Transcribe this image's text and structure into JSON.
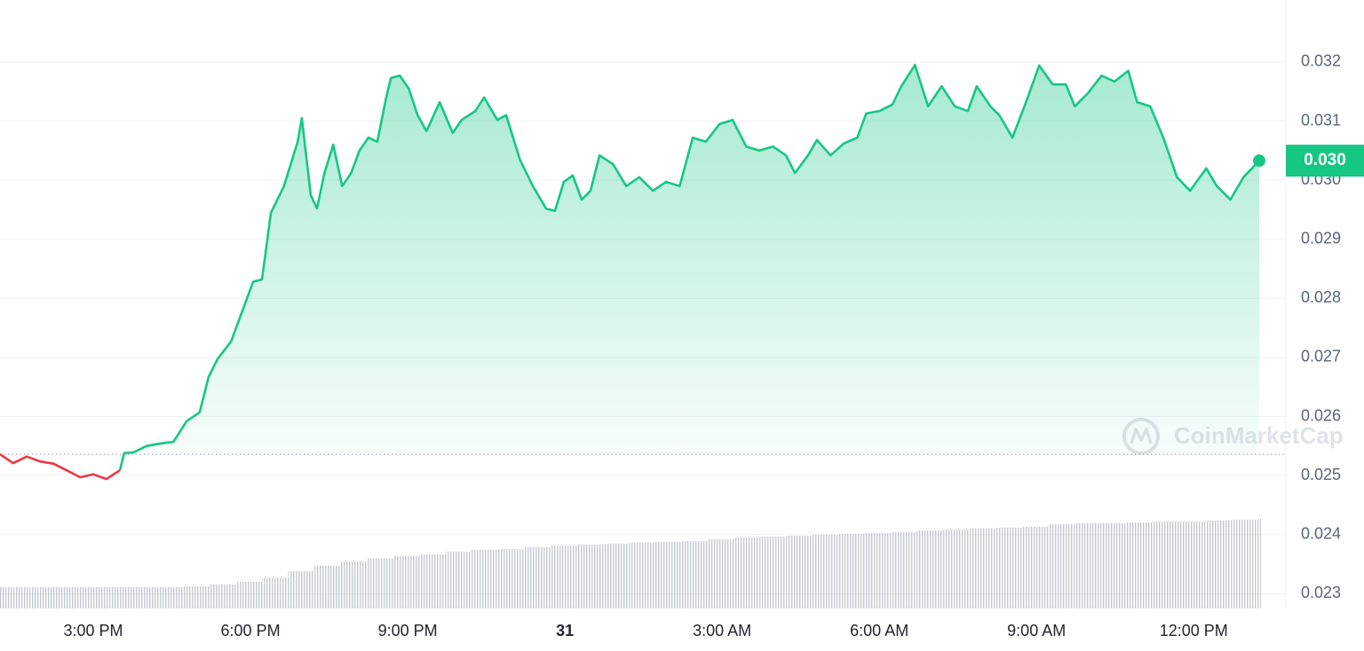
{
  "chart_data": {
    "type": "line",
    "x": [
      13.22,
      13.47,
      13.73,
      13.98,
      14.24,
      14.49,
      14.75,
      15.0,
      15.25,
      15.51,
      15.59,
      15.76,
      16.02,
      16.27,
      16.53,
      16.78,
      17.03,
      17.2,
      17.37,
      17.63,
      17.88,
      18.05,
      18.22,
      18.39,
      18.64,
      18.9,
      18.98,
      19.15,
      19.27,
      19.41,
      19.58,
      19.75,
      19.92,
      20.08,
      20.25,
      20.42,
      20.59,
      20.68,
      20.85,
      21.02,
      21.19,
      21.36,
      21.61,
      21.86,
      22.03,
      22.29,
      22.46,
      22.71,
      22.88,
      23.14,
      23.39,
      23.64,
      23.81,
      23.98,
      24.15,
      24.32,
      24.49,
      24.66,
      24.92,
      25.17,
      25.42,
      25.68,
      25.93,
      26.19,
      26.44,
      26.69,
      26.95,
      27.2,
      27.46,
      27.71,
      27.97,
      28.22,
      28.39,
      28.64,
      28.81,
      29.07,
      29.32,
      29.58,
      29.75,
      30.0,
      30.25,
      30.42,
      30.68,
      30.93,
      31.19,
      31.44,
      31.69,
      31.86,
      32.12,
      32.29,
      32.54,
      32.8,
      33.05,
      33.31,
      33.56,
      33.73,
      33.98,
      34.24,
      34.49,
      34.75,
      34.92,
      35.17,
      35.42,
      35.68,
      35.93,
      36.24,
      36.44,
      36.7,
      36.95,
      37.25
    ],
    "series": [
      {
        "up_color": "#16c784",
        "down_color": "#ea3943",
        "values": [
          0.02536,
          0.02521,
          0.02532,
          0.02524,
          0.0252,
          0.02509,
          0.02497,
          0.02502,
          0.02494,
          0.02509,
          0.02538,
          0.02539,
          0.0255,
          0.02554,
          0.02557,
          0.02592,
          0.02607,
          0.02667,
          0.02697,
          0.02727,
          0.02787,
          0.02828,
          0.02832,
          0.02945,
          0.0299,
          0.03065,
          0.03105,
          0.02975,
          0.02952,
          0.03012,
          0.0306,
          0.0299,
          0.03012,
          0.0305,
          0.03072,
          0.03065,
          0.0314,
          0.03173,
          0.03177,
          0.03155,
          0.0311,
          0.03083,
          0.03132,
          0.0308,
          0.03102,
          0.03117,
          0.0314,
          0.03102,
          0.0311,
          0.03035,
          0.0299,
          0.02952,
          0.02948,
          0.02997,
          0.03008,
          0.02967,
          0.02982,
          0.03042,
          0.03027,
          0.0299,
          0.03005,
          0.02982,
          0.02997,
          0.0299,
          0.03072,
          0.03065,
          0.03095,
          0.03102,
          0.03057,
          0.0305,
          0.03057,
          0.03042,
          0.03012,
          0.03042,
          0.03068,
          0.03042,
          0.03062,
          0.03072,
          0.03113,
          0.03117,
          0.03128,
          0.03159,
          0.03195,
          0.03125,
          0.03159,
          0.03125,
          0.03117,
          0.03159,
          0.03125,
          0.0311,
          0.03072,
          0.03132,
          0.03194,
          0.03162,
          0.03162,
          0.03125,
          0.03147,
          0.03177,
          0.03167,
          0.03185,
          0.03132,
          0.03125,
          0.03072,
          0.03005,
          0.02982,
          0.0302,
          0.0299,
          0.02967,
          0.03005,
          0.03033
        ]
      }
    ],
    "baseline": 0.02536,
    "last_price": {
      "value": 0.03033,
      "label": "0.030"
    },
    "volume": {
      "color": "#c3c9d3",
      "x": [
        13.22,
        13.72,
        14.22,
        14.72,
        15.22,
        15.72,
        16.22,
        16.72,
        17.22,
        17.72,
        18.22,
        18.72,
        19.22,
        19.72,
        20.22,
        20.72,
        21.22,
        21.72,
        22.22,
        22.72,
        23.22,
        23.72,
        24.22,
        24.72,
        25.22,
        25.72,
        26.22,
        26.72,
        27.22,
        27.72,
        28.22,
        28.72,
        29.22,
        29.72,
        30.22,
        30.72,
        31.22,
        31.72,
        32.22,
        32.72,
        33.22,
        33.72,
        34.22,
        34.72,
        35.22,
        35.72,
        36.22,
        36.72,
        37.22
      ],
      "values": [
        24,
        24,
        24,
        24,
        24,
        24,
        24,
        25,
        27,
        30,
        35,
        42,
        48,
        53,
        56,
        59,
        61,
        64,
        66,
        67,
        69,
        71,
        72,
        73,
        74,
        75,
        76,
        78,
        80,
        81,
        82,
        83,
        84,
        85,
        86,
        88,
        89,
        90,
        91,
        92,
        95,
        96,
        96,
        97,
        98,
        98,
        99,
        100,
        101
      ],
      "ylim": [
        0,
        105
      ]
    },
    "xlim": [
      13.22,
      37.25
    ],
    "xticks": [
      {
        "value": 15,
        "label": "3:00 PM"
      },
      {
        "value": 18,
        "label": "6:00 PM"
      },
      {
        "value": 21,
        "label": "9:00 PM"
      },
      {
        "value": 24,
        "label": "31",
        "bold": true
      },
      {
        "value": 27,
        "label": "3:00 AM"
      },
      {
        "value": 30,
        "label": "6:00 AM"
      },
      {
        "value": 33,
        "label": "9:00 AM"
      },
      {
        "value": 36,
        "label": "12:00 PM"
      }
    ],
    "ylim": [
      0.02275,
      0.03305
    ],
    "yticks": [
      0.023,
      0.024,
      0.025,
      0.026,
      0.027,
      0.028,
      0.029,
      {
        "value": 0.03,
        "label": "0.030"
      },
      0.031,
      0.032
    ],
    "grid": true,
    "watermark": "CoinMarketCap"
  }
}
